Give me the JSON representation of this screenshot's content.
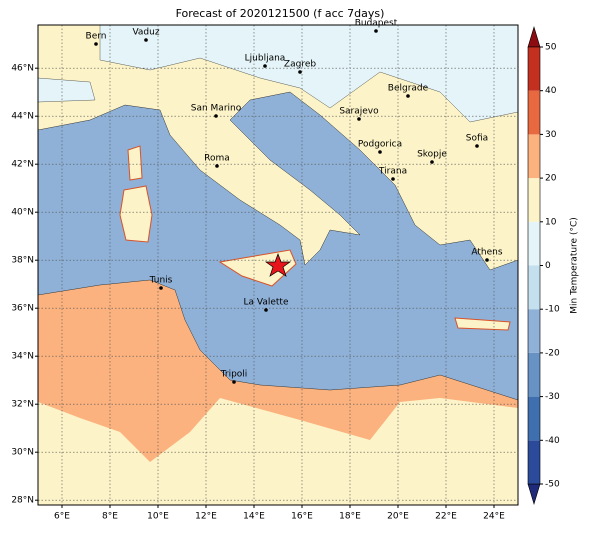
{
  "map": {
    "title": "Forecast of 2020121500 (f acc 7days)",
    "xlim": [
      5,
      25
    ],
    "ylim": [
      27.8,
      47.8
    ],
    "xticks": [
      {
        "value": 6,
        "label": "6°E"
      },
      {
        "value": 8,
        "label": "8°E"
      },
      {
        "value": 10,
        "label": "10°E"
      },
      {
        "value": 12,
        "label": "12°E"
      },
      {
        "value": 14,
        "label": "14°E"
      },
      {
        "value": 16,
        "label": "16°E"
      },
      {
        "value": 18,
        "label": "18°E"
      },
      {
        "value": 20,
        "label": "20°E"
      },
      {
        "value": 22,
        "label": "22°E"
      },
      {
        "value": 24,
        "label": "24°E"
      }
    ],
    "yticks": [
      {
        "value": 28,
        "label": "28°N"
      },
      {
        "value": 30,
        "label": "30°N"
      },
      {
        "value": 32,
        "label": "32°N"
      },
      {
        "value": 34,
        "label": "34°N"
      },
      {
        "value": 36,
        "label": "36°N"
      },
      {
        "value": 38,
        "label": "38°N"
      },
      {
        "value": 40,
        "label": "40°N"
      },
      {
        "value": 42,
        "label": "42°N"
      },
      {
        "value": 44,
        "label": "44°N"
      },
      {
        "value": 46,
        "label": "46°N"
      }
    ],
    "grid": true,
    "cities": [
      "Bern",
      "Vaduz",
      "Budapest",
      "Ljubljana",
      "Zagreb",
      "Belgrade",
      "San Marino",
      "Sarajevo",
      "Sofia",
      "Podgorica",
      "Skopje",
      "Roma",
      "Tirana",
      "Athens",
      "Tunis",
      "La Valette",
      "Tripoli"
    ],
    "colorbar": {
      "label": "Min Temperature (°C)",
      "lim": [
        -50,
        50
      ],
      "ticks": [
        -50,
        -40,
        -30,
        -20,
        -10,
        0,
        10,
        20,
        30,
        40,
        50
      ],
      "colors": [
        "#1f2a7a",
        "#2c4a9a",
        "#3f6fae",
        "#6792c4",
        "#8fb1d7",
        "#c4e0ee",
        "#e4f4f8",
        "#fcf4c8",
        "#fbb27e",
        "#e8683f",
        "#c4301f",
        "#8c0c12"
      ]
    }
  }
}
